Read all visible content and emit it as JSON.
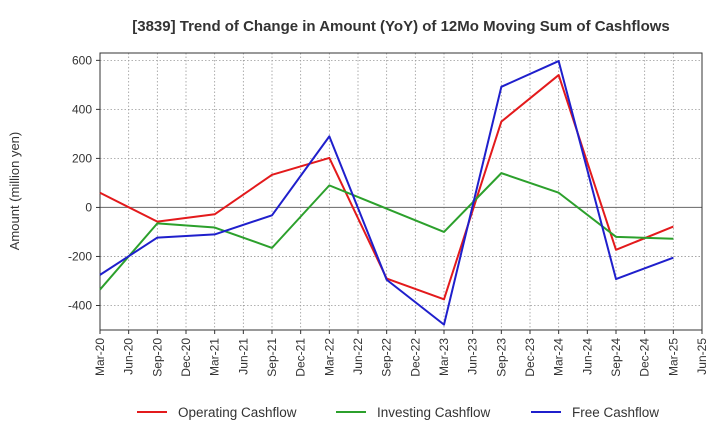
{
  "chart_data": {
    "type": "line",
    "title": "[3839]  Trend of Change in Amount (YoY) of 12Mo Moving Sum of Cashflows",
    "xlabel": "",
    "ylabel": "Amount (million yen)",
    "ylim": [
      -500,
      630
    ],
    "yticks": [
      -400,
      -200,
      0,
      200,
      400,
      600
    ],
    "ytick_labels": [
      "-400",
      "-200",
      "0",
      "200",
      "400",
      "600"
    ],
    "grid": true,
    "legend_position": "bottom",
    "categories": [
      "Mar-20",
      "Jun-20",
      "Sep-20",
      "Dec-20",
      "Mar-21",
      "Jun-21",
      "Sep-21",
      "Dec-21",
      "Mar-22",
      "Jun-22",
      "Sep-22",
      "Dec-22",
      "Mar-23",
      "Jun-23",
      "Sep-23",
      "Dec-23",
      "Mar-24",
      "Jun-24",
      "Sep-24",
      "Dec-24",
      "Mar-25",
      "Jun-25"
    ],
    "series": [
      {
        "name": "Operating Cashflow",
        "color": "#e31a1c",
        "values": [
          60,
          null,
          -58,
          null,
          -28,
          null,
          133,
          null,
          202,
          null,
          -290,
          null,
          -375,
          null,
          350,
          null,
          540,
          null,
          -173,
          null,
          -78,
          null
        ]
      },
      {
        "name": "Investing Cashflow",
        "color": "#2ca02c",
        "values": [
          -335,
          null,
          -65,
          null,
          -82,
          null,
          -165,
          null,
          90,
          null,
          -5,
          null,
          -100,
          null,
          140,
          null,
          60,
          null,
          -120,
          null,
          -128,
          null
        ]
      },
      {
        "name": "Free Cashflow",
        "color": "#1f1fcc",
        "values": [
          -275,
          null,
          -123,
          null,
          -110,
          null,
          -32,
          null,
          290,
          null,
          -295,
          null,
          -478,
          null,
          492,
          null,
          597,
          null,
          -292,
          null,
          -205,
          null
        ]
      }
    ]
  }
}
